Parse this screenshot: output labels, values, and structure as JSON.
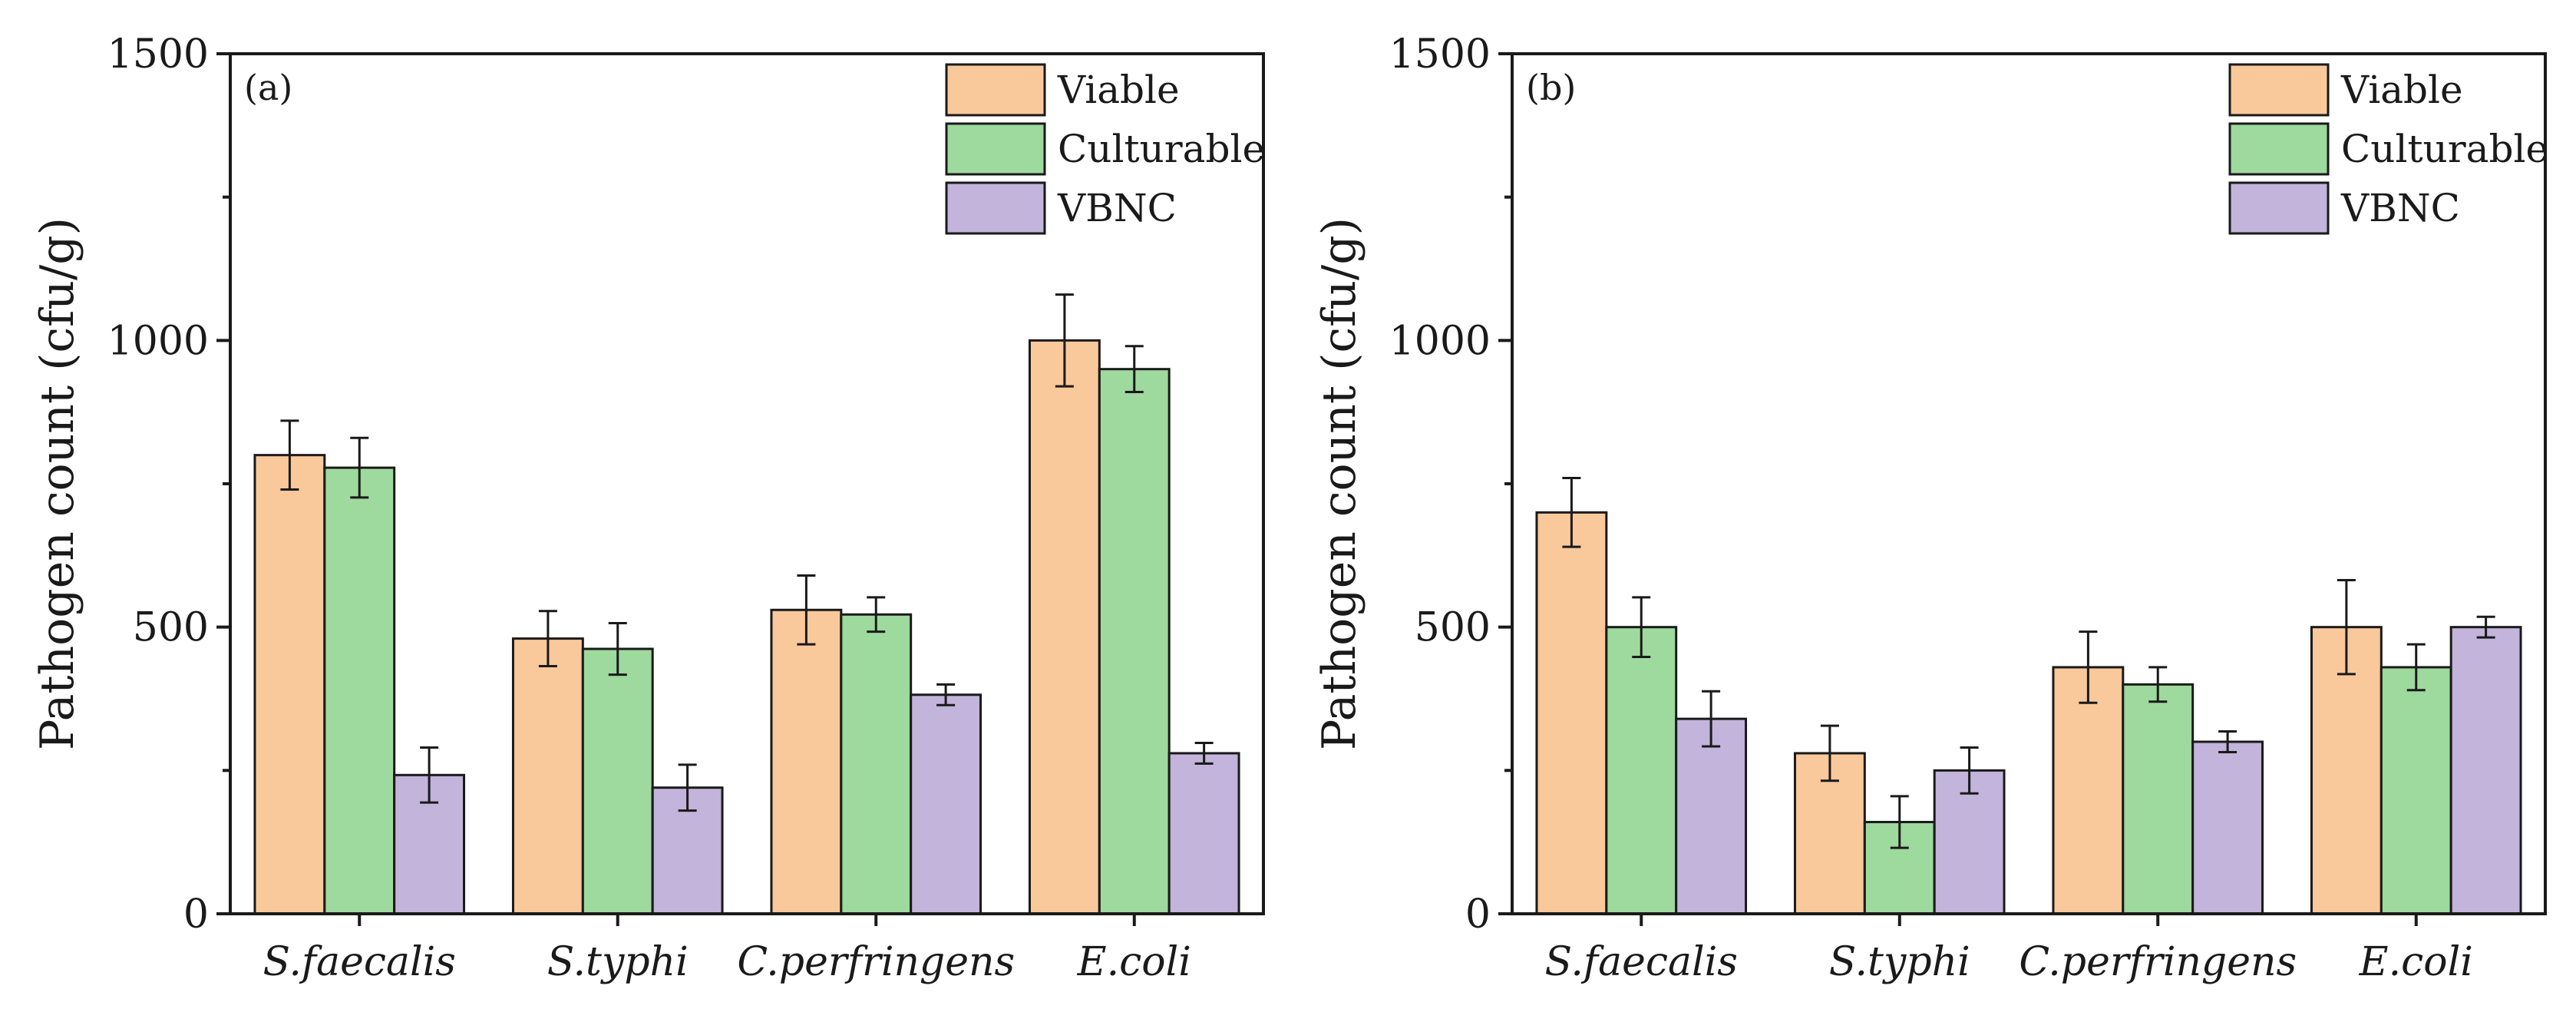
{
  "chart_data": [
    {
      "type": "bar",
      "panel_label": "(a)",
      "ylabel": "Pathogen count (cfu/g)",
      "xlabel": "",
      "ylim": [
        0,
        1500
      ],
      "yticks": [
        "0",
        "500",
        "1000",
        "1500"
      ],
      "legend_position": "top-right",
      "categories": [
        "S.faecalis",
        "S.typhi",
        "C.perfringens",
        "E.coli"
      ],
      "series": [
        {
          "name": "Viable",
          "color": "#F9C89B",
          "values": [
            800,
            480,
            530,
            1000
          ],
          "errors": [
            60,
            48,
            60,
            80
          ]
        },
        {
          "name": "Culturable",
          "color": "#9ED99E",
          "values": [
            778,
            462,
            522,
            950
          ],
          "errors": [
            52,
            45,
            30,
            40
          ]
        },
        {
          "name": "VBNC",
          "color": "#C2B4DA",
          "values": [
            242,
            220,
            382,
            280
          ],
          "errors": [
            48,
            40,
            18,
            18
          ]
        }
      ]
    },
    {
      "type": "bar",
      "panel_label": "(b)",
      "ylabel": "Pathogen count (cfu/g)",
      "xlabel": "",
      "ylim": [
        0,
        1500
      ],
      "yticks": [
        "0",
        "500",
        "1000",
        "1500"
      ],
      "legend_position": "top-right",
      "categories": [
        "S.faecalis",
        "S.typhi",
        "C.perfringens",
        "E.coli"
      ],
      "series": [
        {
          "name": "Viable",
          "color": "#F9C89B",
          "values": [
            700,
            280,
            430,
            500
          ],
          "errors": [
            60,
            48,
            62,
            82
          ]
        },
        {
          "name": "Culturable",
          "color": "#9ED99E",
          "values": [
            500,
            160,
            400,
            430
          ],
          "errors": [
            52,
            45,
            30,
            40
          ]
        },
        {
          "name": "VBNC",
          "color": "#C2B4DA",
          "values": [
            340,
            250,
            300,
            500
          ],
          "errors": [
            48,
            40,
            18,
            18
          ]
        }
      ]
    }
  ]
}
